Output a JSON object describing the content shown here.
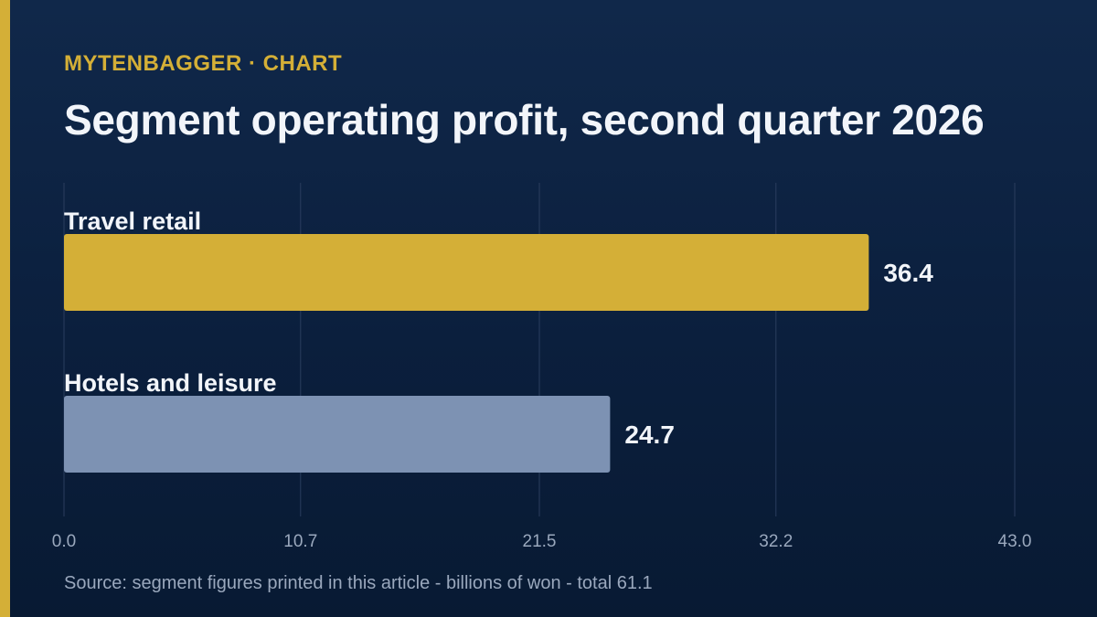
{
  "header": {
    "brand": "MYTENBAGGER · CHART",
    "title": "Segment operating profit, second quarter 2026"
  },
  "footer": {
    "source": "Source: segment figures printed in this article - billions of won - total 61.1"
  },
  "colors": {
    "accent": "#d4af37",
    "secondary_bar": "#7d92b3",
    "background": "#0b1f3d",
    "text": "#f2f5fa",
    "muted_text": "#9aa8bd",
    "grid": "#2a3d5e"
  },
  "chart_data": {
    "type": "bar",
    "orientation": "horizontal",
    "categories": [
      "Travel retail",
      "Hotels and leisure"
    ],
    "values": [
      36.4,
      24.7
    ],
    "value_labels": [
      "36.4",
      "24.7"
    ],
    "bar_colors": [
      "#d4af37",
      "#7d92b3"
    ],
    "xlim": [
      0,
      43.0
    ],
    "x_ticks": [
      0.0,
      10.7,
      21.5,
      32.2,
      43.0
    ],
    "x_tick_labels": [
      "0.0",
      "10.7",
      "21.5",
      "32.2",
      "43.0"
    ],
    "grid": true,
    "legend": "none"
  }
}
